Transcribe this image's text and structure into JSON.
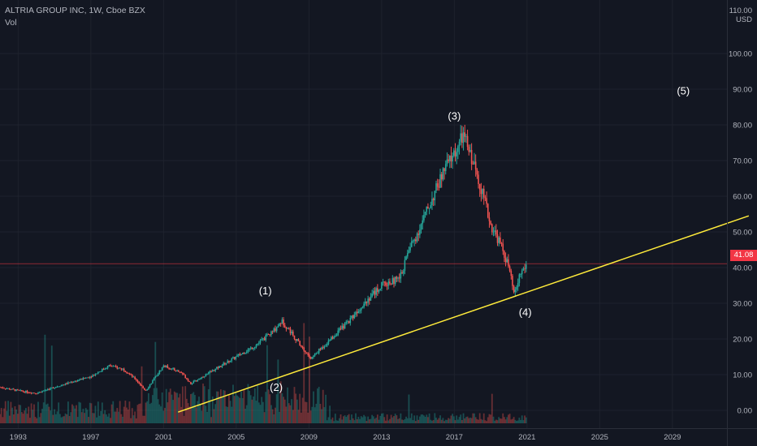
{
  "header": {
    "symbol_line": "ALTRIA GROUP INC, 1W, Cboe BZX",
    "indicator": "Vol",
    "currency": "USD"
  },
  "colors": {
    "background": "#131722",
    "grid": "#1e222d",
    "up": "#26a69a",
    "down": "#ef5350",
    "trendline": "#ffeb3b",
    "price_line": "#f23645",
    "axis_text": "#b2b5be"
  },
  "chart_data": {
    "type": "candlestick",
    "title": "",
    "xlabel": "",
    "ylabel": "",
    "x_ticks": [
      "1993",
      "1997",
      "2001",
      "2005",
      "2009",
      "2013",
      "2017",
      "2021",
      "2025",
      "2029"
    ],
    "x_range": [
      1992,
      2032
    ],
    "y_ticks": [
      0,
      10,
      20,
      30,
      40,
      50,
      60,
      70,
      80,
      90,
      100
    ],
    "y_tick_labels": [
      "0.00",
      "10.00",
      "20.00",
      "30.00",
      "40.00",
      "50.00",
      "60.00",
      "70.00",
      "80.00",
      "90.00",
      "100.00"
    ],
    "y_top_label": "110.00",
    "ylim": [
      -5,
      115
    ],
    "grid": true,
    "last_price": 41.08,
    "last_price_label": "41.08",
    "price_path": [
      [
        1992.0,
        6.5
      ],
      [
        1993.0,
        5.5
      ],
      [
        1994.0,
        4.8
      ],
      [
        1995.0,
        6.5
      ],
      [
        1996.0,
        8.0
      ],
      [
        1997.0,
        9.5
      ],
      [
        1998.0,
        12.5
      ],
      [
        1998.8,
        11.5
      ],
      [
        1999.5,
        8.5
      ],
      [
        2000.0,
        5.5
      ],
      [
        2000.5,
        9.0
      ],
      [
        2001.0,
        12.5
      ],
      [
        2002.0,
        10.5
      ],
      [
        2002.5,
        7.5
      ],
      [
        2003.0,
        9.0
      ],
      [
        2004.0,
        12.0
      ],
      [
        2005.0,
        15.0
      ],
      [
        2006.0,
        18.0
      ],
      [
        2007.0,
        22.0
      ],
      [
        2007.5,
        25.0
      ],
      [
        2008.0,
        22.0
      ],
      [
        2008.7,
        17.0
      ],
      [
        2009.1,
        14.5
      ],
      [
        2010.0,
        19.0
      ],
      [
        2011.0,
        24.0
      ],
      [
        2012.0,
        30.0
      ],
      [
        2013.0,
        35.0
      ],
      [
        2014.0,
        37.0
      ],
      [
        2014.5,
        45.0
      ],
      [
        2015.0,
        50.0
      ],
      [
        2015.5,
        56.0
      ],
      [
        2016.0,
        62.0
      ],
      [
        2016.5,
        68.0
      ],
      [
        2017.0,
        72.0
      ],
      [
        2017.5,
        77.0
      ],
      [
        2018.0,
        70.0
      ],
      [
        2018.5,
        62.0
      ],
      [
        2019.0,
        52.0
      ],
      [
        2019.5,
        47.0
      ],
      [
        2020.0,
        40.0
      ],
      [
        2020.3,
        32.0
      ],
      [
        2020.6,
        38.0
      ],
      [
        2021.0,
        41.08
      ]
    ],
    "trendline": {
      "start": [
        2001.8,
        -0.5
      ],
      "end": [
        2033.2,
        54.5
      ]
    },
    "wave_labels": [
      {
        "text": "(1)",
        "x": 2006.6,
        "y": 32.5
      },
      {
        "text": "(2)",
        "x": 2007.2,
        "y": 5.5
      },
      {
        "text": "(3)",
        "x": 2017.0,
        "y": 81.5
      },
      {
        "text": "(4)",
        "x": 2020.9,
        "y": 26.5
      },
      {
        "text": "(5)",
        "x": 2029.6,
        "y": 88.5
      }
    ]
  }
}
